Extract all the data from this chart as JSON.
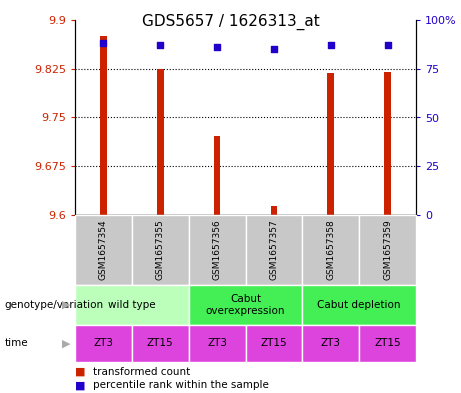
{
  "title": "GDS5657 / 1626313_at",
  "samples": [
    "GSM1657354",
    "GSM1657355",
    "GSM1657356",
    "GSM1657357",
    "GSM1657358",
    "GSM1657359"
  ],
  "transformed_counts": [
    9.876,
    9.825,
    9.722,
    9.614,
    9.818,
    9.82
  ],
  "percentile_ranks": [
    88,
    87,
    86,
    85,
    87,
    87
  ],
  "ylim_left": [
    9.6,
    9.9
  ],
  "ylim_right": [
    0,
    100
  ],
  "yticks_left": [
    9.6,
    9.675,
    9.75,
    9.825,
    9.9
  ],
  "yticks_right": [
    0,
    25,
    50,
    75,
    100
  ],
  "ytick_labels_left": [
    "9.6",
    "9.675",
    "9.75",
    "9.825",
    "9.9"
  ],
  "ytick_labels_right": [
    "0",
    "25",
    "50",
    "75",
    "100%"
  ],
  "bar_color": "#cc2200",
  "dot_color": "#2200cc",
  "times": [
    "ZT3",
    "ZT15",
    "ZT3",
    "ZT15",
    "ZT3",
    "ZT15"
  ],
  "time_color": "#dd44dd",
  "sample_bg_color": "#c8c8c8",
  "wild_type_color": "#bbffbb",
  "cabut_over_color": "#44ee55",
  "cabut_dep_color": "#44ee55",
  "legend_red_label": "transformed count",
  "legend_blue_label": "percentile rank within the sample",
  "genotype_label": "genotype/variation",
  "time_label": "time"
}
